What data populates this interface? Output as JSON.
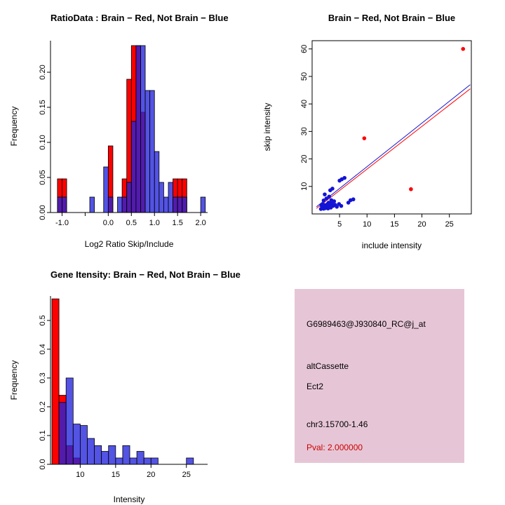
{
  "colors": {
    "red": "#FF0000",
    "blue": "#1414D4",
    "hist_blue": "#2222DD",
    "axis": "#000000",
    "info_box_bg": "#E6C6D6",
    "pval_red": "#CC0000"
  },
  "chart_data": [
    {
      "id": "ratio_hist",
      "type": "bar",
      "title": "RatioData : Brain − Red, Not Brain − Blue",
      "xlabel": "Log2 Ratio Skip/Include",
      "ylabel": "Frequency",
      "xlim": [
        -1.25,
        2.15
      ],
      "ylim": [
        0,
        0.245
      ],
      "xticks": [
        -1.0,
        -0.5,
        0.0,
        0.5,
        1.0,
        1.5,
        2.0
      ],
      "xtick_labels": [
        "-1.0",
        "",
        "0.0",
        "0.5",
        "1.0",
        "1.5",
        "2.0"
      ],
      "yticks": [
        0,
        0.05,
        0.1,
        0.15,
        0.2
      ],
      "ytick_labels": [
        "0.00",
        "0.05",
        "0.10",
        "0.15",
        "0.20"
      ],
      "bin_width": 0.1,
      "series": [
        {
          "name": "Brain",
          "color": "#FF0000",
          "opacity": 1,
          "bins": [
            [
              -1.1,
              0.048
            ],
            [
              -1.0,
              0.048
            ],
            [
              0.0,
              0.095
            ],
            [
              0.3,
              0.048
            ],
            [
              0.4,
              0.19
            ],
            [
              0.5,
              0.238
            ],
            [
              0.6,
              0.238
            ],
            [
              0.7,
              0.143
            ],
            [
              1.4,
              0.048
            ],
            [
              1.5,
              0.048
            ],
            [
              1.6,
              0.048
            ]
          ]
        },
        {
          "name": "Not Brain",
          "color": "#2222DD",
          "opacity": 0.78,
          "bins": [
            [
              -1.1,
              0.022
            ],
            [
              -1.0,
              0.022
            ],
            [
              -0.4,
              0.022
            ],
            [
              -0.1,
              0.065
            ],
            [
              0.0,
              0.022
            ],
            [
              0.2,
              0.022
            ],
            [
              0.3,
              0.022
            ],
            [
              0.4,
              0.043
            ],
            [
              0.5,
              0.13
            ],
            [
              0.6,
              0.238
            ],
            [
              0.7,
              0.238
            ],
            [
              0.8,
              0.174
            ],
            [
              0.9,
              0.174
            ],
            [
              1.0,
              0.087
            ],
            [
              1.1,
              0.043
            ],
            [
              1.2,
              0.022
            ],
            [
              1.3,
              0.043
            ],
            [
              1.4,
              0.022
            ],
            [
              1.5,
              0.022
            ],
            [
              1.6,
              0.022
            ],
            [
              2.0,
              0.022
            ]
          ]
        }
      ]
    },
    {
      "id": "intensity_scatter",
      "type": "scatter",
      "title": "Brain − Red, Not Brain − Blue",
      "xlabel": "include intensity",
      "ylabel": "skip intensity",
      "xlim": [
        0,
        29
      ],
      "ylim": [
        0,
        63
      ],
      "xticks": [
        5,
        10,
        15,
        20,
        25
      ],
      "xtick_labels": [
        "5",
        "10",
        "15",
        "20",
        "25"
      ],
      "yticks": [
        10,
        20,
        30,
        40,
        50,
        60
      ],
      "ytick_labels": [
        "10",
        "20",
        "30",
        "40",
        "50",
        "60"
      ],
      "series": [
        {
          "name": "Brain",
          "color": "#FF0000",
          "points": [
            [
              2.3,
              2.9
            ],
            [
              2.9,
              2.3
            ],
            [
              3.3,
              3.5
            ],
            [
              9.5,
              27.5
            ],
            [
              18.0,
              9.0
            ],
            [
              27.5,
              60.0
            ]
          ]
        },
        {
          "name": "Not Brain",
          "color": "#1414D4",
          "points": [
            [
              1.6,
              1.8
            ],
            [
              1.9,
              2.4
            ],
            [
              2.1,
              1.9
            ],
            [
              2.2,
              2.8
            ],
            [
              2.4,
              2.1
            ],
            [
              2.5,
              3.2
            ],
            [
              2.6,
              2.4
            ],
            [
              2.8,
              3.6
            ],
            [
              2.9,
              2.0
            ],
            [
              3.0,
              2.6
            ],
            [
              3.0,
              4.1
            ],
            [
              3.2,
              3.0
            ],
            [
              3.4,
              2.3
            ],
            [
              3.5,
              5.0
            ],
            [
              3.6,
              3.9
            ],
            [
              3.8,
              2.9
            ],
            [
              4.0,
              4.6
            ],
            [
              4.2,
              3.3
            ],
            [
              4.5,
              2.6
            ],
            [
              2.1,
              4.9
            ],
            [
              2.6,
              5.6
            ],
            [
              3.1,
              6.3
            ],
            [
              2.3,
              7.1
            ],
            [
              3.3,
              8.6
            ],
            [
              3.7,
              9.2
            ],
            [
              5.0,
              12.1
            ],
            [
              5.4,
              12.6
            ],
            [
              5.9,
              13.1
            ],
            [
              7.0,
              5.0
            ],
            [
              7.5,
              5.3
            ],
            [
              6.6,
              4.1
            ],
            [
              4.9,
              3.6
            ],
            [
              5.3,
              2.9
            ],
            [
              1.7,
              3.1
            ],
            [
              2.0,
              3.5
            ]
          ]
        }
      ],
      "fit_lines": [
        {
          "name": "brain-fit",
          "color": "#FF0000",
          "from": [
            0.8,
            2.0
          ],
          "to": [
            28.8,
            45.5
          ]
        },
        {
          "name": "not-brain-fit",
          "color": "#1414D4",
          "from": [
            0.8,
            2.6
          ],
          "to": [
            28.8,
            47.0
          ]
        }
      ]
    },
    {
      "id": "gene_intensity_hist",
      "type": "bar",
      "title": "Gene Itensity: Brain − Red, Not Brain − Blue",
      "xlabel": "Intensity",
      "ylabel": "Frequency",
      "xlim": [
        5.8,
        28.0
      ],
      "ylim": [
        0,
        0.585
      ],
      "xticks": [
        10,
        15,
        20,
        25
      ],
      "xtick_labels": [
        "10",
        "15",
        "20",
        "25"
      ],
      "yticks": [
        0,
        0.1,
        0.2,
        0.3,
        0.4,
        0.5
      ],
      "ytick_labels": [
        "0.0",
        "0.1",
        "0.2",
        "0.3",
        "0.4",
        "0.5"
      ],
      "bin_width": 1,
      "series": [
        {
          "name": "Brain",
          "color": "#FF0000",
          "opacity": 1,
          "bins": [
            [
              6,
              0.575
            ],
            [
              7,
              0.24
            ],
            [
              8,
              0.065
            ],
            [
              9,
              0.022
            ]
          ]
        },
        {
          "name": "Not Brain",
          "color": "#2222DD",
          "opacity": 0.78,
          "bins": [
            [
              7,
              0.215
            ],
            [
              8,
              0.3
            ],
            [
              9,
              0.14
            ],
            [
              10,
              0.135
            ],
            [
              11,
              0.09
            ],
            [
              12,
              0.065
            ],
            [
              13,
              0.045
            ],
            [
              14,
              0.065
            ],
            [
              15,
              0.022
            ],
            [
              16,
              0.065
            ],
            [
              17,
              0.022
            ],
            [
              18,
              0.045
            ],
            [
              19,
              0.022
            ],
            [
              20,
              0.022
            ],
            [
              25,
              0.022
            ]
          ]
        }
      ]
    }
  ],
  "info_box": {
    "bg": "#E6C6D6",
    "lines": [
      {
        "text": "G6989463@J930840_RC@j_at",
        "color": "#000000"
      },
      {
        "text": "altCassette",
        "color": "#000000"
      },
      {
        "text": "Ect2",
        "color": "#000000"
      },
      {
        "text": "chr3.15700-1.46",
        "color": "#000000"
      },
      {
        "text": "Pval: 2.000000",
        "color": "#CC0000"
      }
    ]
  }
}
